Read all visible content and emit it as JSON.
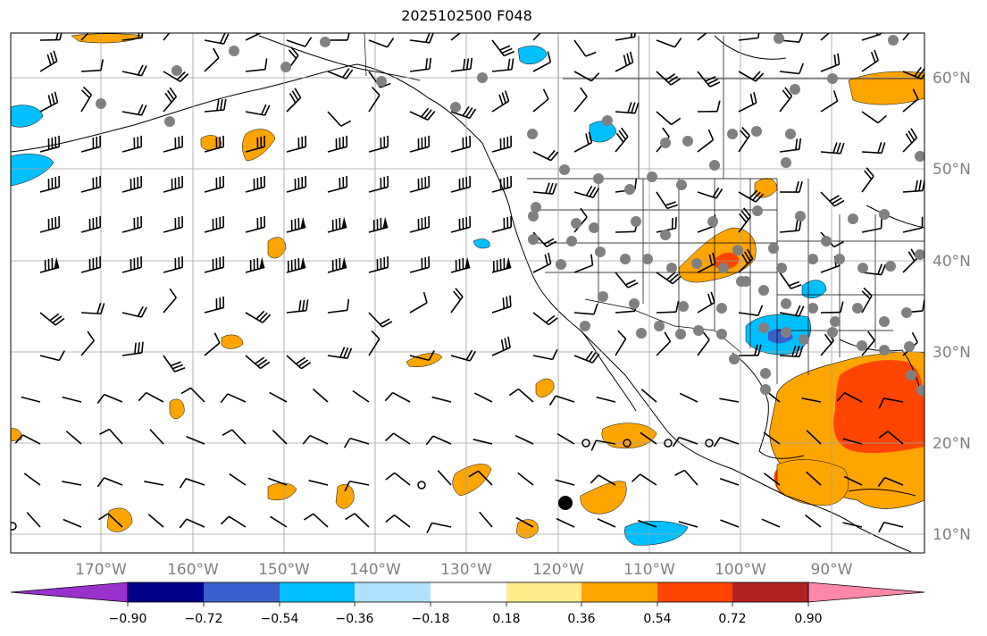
{
  "title": "2025102500 F048",
  "map": {
    "lon_labels": [
      "170°W",
      "160°W",
      "150°W",
      "140°W",
      "130°W",
      "120°W",
      "110°W",
      "100°W",
      "90°W"
    ],
    "lat_labels": [
      "60°N",
      "50°N",
      "40°N",
      "30°N",
      "20°N",
      "10°N"
    ],
    "label_color": "#808080",
    "gridline_color": "#a0a0a0"
  },
  "colorbar": {
    "colors": [
      "#9932cc",
      "#00008b",
      "#3a5fcd",
      "#00bfff",
      "#b0e2ff",
      "#ffffff",
      "#ffec8b",
      "#ffa500",
      "#ff4500",
      "#b22222",
      "#ff88aa"
    ],
    "tick_labels": [
      "−0.90",
      "−0.72",
      "−0.54",
      "−0.36",
      "−0.18",
      "0.18",
      "0.36",
      "0.54",
      "0.72",
      "0.90"
    ]
  }
}
